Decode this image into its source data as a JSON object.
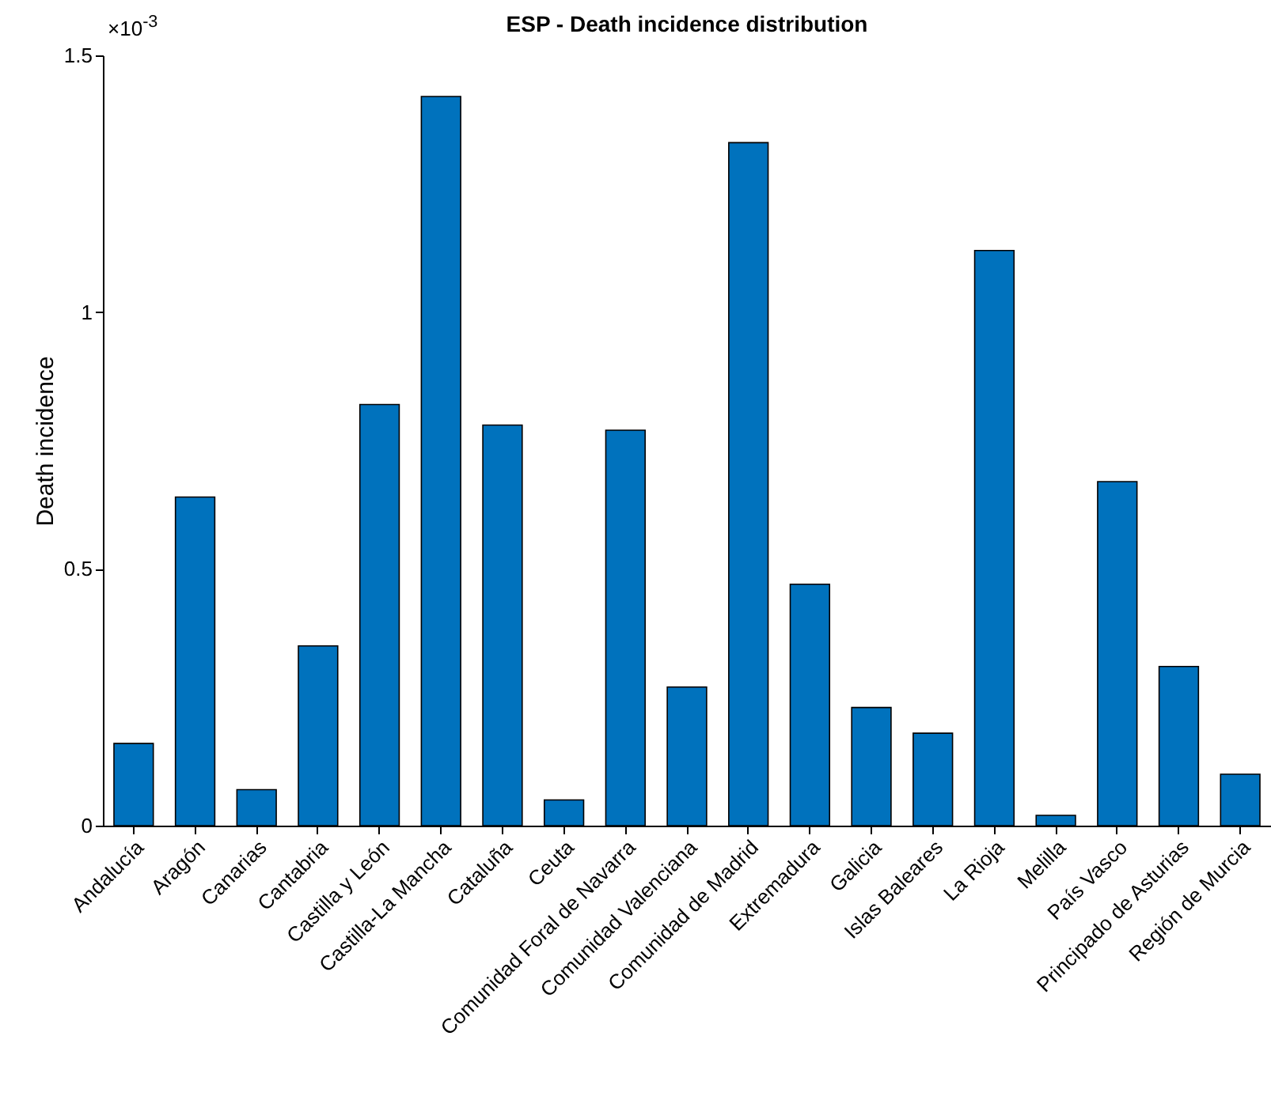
{
  "chart_data": {
    "type": "bar",
    "title": "ESP - Death incidence distribution",
    "ylabel": "Death incidence",
    "categories": [
      "Andalucía",
      "Aragón",
      "Canarias",
      "Cantabria",
      "Castilla y León",
      "Castilla-La Mancha",
      "Cataluña",
      "Ceuta",
      "Comunidad Foral de Navarra",
      "Comunidad Valenciana",
      "Comunidad de Madrid",
      "Extremadura",
      "Galicia",
      "Islas Baleares",
      "La Rioja",
      "Melilla",
      "País Vasco",
      "Principado de Asturias",
      "Región de Murcia"
    ],
    "values": [
      0.16,
      0.64,
      0.07,
      0.35,
      0.82,
      1.42,
      0.78,
      0.05,
      0.77,
      0.27,
      1.33,
      0.47,
      0.23,
      0.18,
      1.12,
      0.02,
      0.67,
      0.31,
      0.1
    ],
    "color": "#0072bd",
    "ylim": [
      0,
      1.5
    ],
    "yticks": [
      0,
      0.5,
      1,
      1.5
    ],
    "annotations": [
      "×10$^{-3}$"
    ],
    "grid": false
  }
}
